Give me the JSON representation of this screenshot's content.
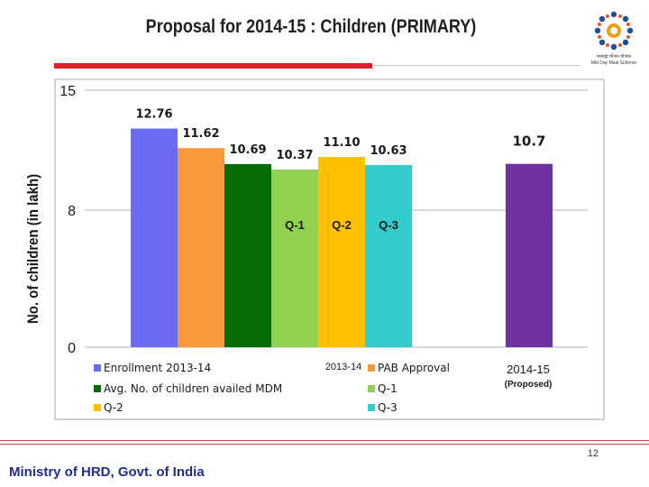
{
  "slide": {
    "title": "Proposal for 2014-15 : Children (PRIMARY)",
    "page_number": "12",
    "footer": "Ministry of HRD, Govt. of India",
    "logo_caption_line1": "मध्याह्न भोजन योजना",
    "logo_caption_line2": "Mid Day Meal Scheme"
  },
  "colors": {
    "title_red_bar": "#d9232a",
    "footer_text": "#1f2d8f",
    "enrollment": "#6a6af5",
    "pab": "#f8983a",
    "avg_mdm": "#056b05",
    "q1": "#92d050",
    "q2": "#ffc000",
    "q3": "#33cccc",
    "proposed": "#7030a0"
  },
  "chart_data": {
    "type": "bar",
    "ylabel": "No. of children (in lakh)",
    "ylim": [
      0,
      15
    ],
    "yticks": [
      "0",
      "8",
      "15"
    ],
    "grid": true,
    "groups": [
      {
        "label": "2013-14",
        "sublabel": "",
        "bars": [
          {
            "series": "Enrollment 2013-14",
            "value": 12.76,
            "label": "12.76",
            "color": "#6a6af5",
            "inner_label": ""
          },
          {
            "series": "PAB Approval",
            "value": 11.62,
            "label": "11.62",
            "color": "#f8983a",
            "inner_label": ""
          },
          {
            "series": "Avg. No. of children availed MDM",
            "value": 10.69,
            "label": "10.69",
            "color": "#056b05",
            "inner_label": ""
          },
          {
            "series": "Q-1",
            "value": 10.37,
            "label": "10.37",
            "color": "#92d050",
            "inner_label": "Q-1"
          },
          {
            "series": "Q-2",
            "value": 11.1,
            "label": "11.10",
            "color": "#ffc000",
            "inner_label": "Q-2"
          },
          {
            "series": "Q-3",
            "value": 10.63,
            "label": "10.63",
            "color": "#33cccc",
            "inner_label": "Q-3"
          }
        ]
      },
      {
        "label": "2014-15",
        "sublabel": "(Proposed)",
        "bars": [
          {
            "series": "Proposed",
            "value": 10.7,
            "label": "10.7",
            "color": "#7030a0",
            "inner_label": ""
          }
        ]
      }
    ],
    "legend": {
      "placement": "bottom-left",
      "entries": [
        {
          "name": "Enrollment 2013-14",
          "color": "#6a6af5"
        },
        {
          "name": "PAB Approval",
          "color": "#f8983a"
        },
        {
          "name": "Avg. No. of children availed MDM",
          "color": "#056b05"
        },
        {
          "name": "Q-1",
          "color": "#92d050"
        },
        {
          "name": "Q-2",
          "color": "#ffc000"
        },
        {
          "name": "Q-3",
          "color": "#33cccc"
        }
      ]
    }
  }
}
